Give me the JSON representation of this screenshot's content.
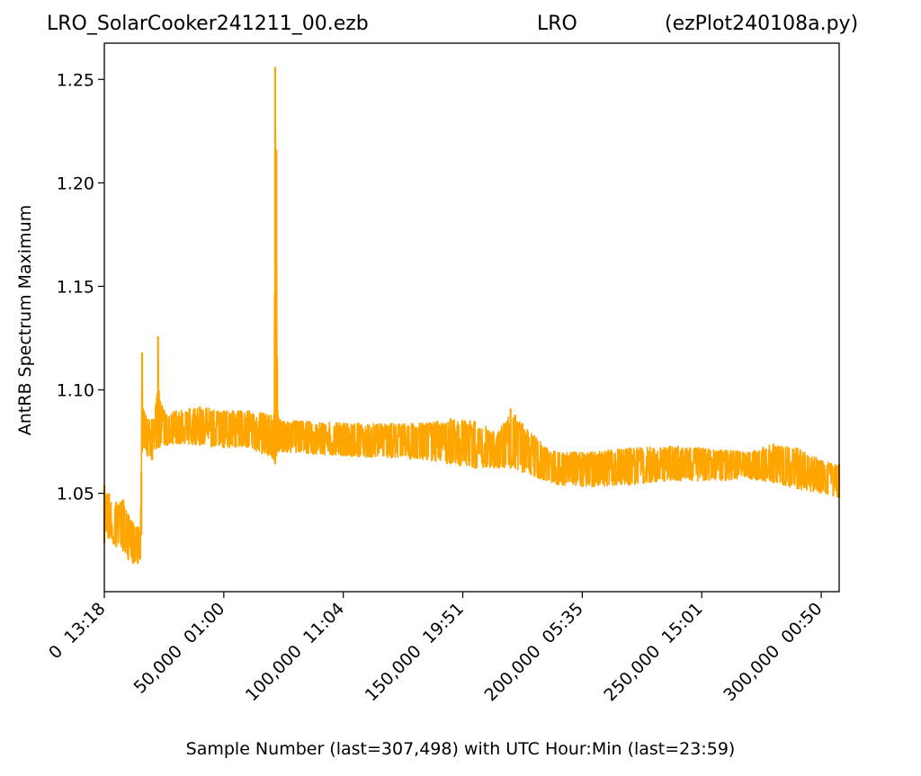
{
  "header": {
    "left": "LRO_SolarCooker241211_00.ezb",
    "center": "LRO",
    "right": "(ezPlot240108a.py)"
  },
  "chart_data": {
    "type": "line",
    "xlabel": "Sample Number (last=307,498) with UTC Hour:Min (last=23:59)",
    "ylabel": "AntRB Spectrum Maximum",
    "xlim": [
      0,
      307498
    ],
    "ylim": [
      1.0025,
      1.2675
    ],
    "xticks": [
      {
        "value": 0,
        "label": "0  13:18"
      },
      {
        "value": 50000,
        "label": "50,000  01:00"
      },
      {
        "value": 100000,
        "label": "100,000  11:04"
      },
      {
        "value": 150000,
        "label": "150,000  19:51"
      },
      {
        "value": 200000,
        "label": "200,000  05:35"
      },
      {
        "value": 250000,
        "label": "250,000  15:01"
      },
      {
        "value": 300000,
        "label": "300,000  00:50"
      }
    ],
    "yticks": [
      {
        "value": 1.05,
        "label": "1.05"
      },
      {
        "value": 1.1,
        "label": "1.10"
      },
      {
        "value": 1.15,
        "label": "1.15"
      },
      {
        "value": 1.2,
        "label": "1.20"
      },
      {
        "value": 1.25,
        "label": "1.25"
      }
    ],
    "grid": false,
    "series": [
      {
        "color": "#ffa500",
        "x": [
          0,
          2000,
          5000,
          8000,
          10000,
          12000,
          14000,
          15000,
          15500,
          15800,
          16500,
          18000,
          20000,
          22000,
          22500,
          23000,
          26000,
          30000,
          40000,
          50000,
          60000,
          66000,
          71000,
          71500,
          72000,
          72500,
          73000,
          75000,
          85000,
          100000,
          120000,
          135000,
          145000,
          155000,
          165000,
          170000,
          172000,
          175000,
          180000,
          185000,
          190000,
          200000,
          220000,
          240000,
          260000,
          270000,
          280000,
          290000,
          300000,
          307498
        ],
        "min": [
          1.026,
          1.028,
          1.024,
          1.022,
          1.018,
          1.016,
          1.016,
          1.018,
          1.03,
          1.07,
          1.072,
          1.068,
          1.066,
          1.072,
          1.072,
          1.072,
          1.073,
          1.074,
          1.073,
          1.072,
          1.072,
          1.069,
          1.066,
          1.064,
          1.068,
          1.07,
          1.07,
          1.07,
          1.069,
          1.068,
          1.067,
          1.066,
          1.064,
          1.062,
          1.062,
          1.062,
          1.062,
          1.06,
          1.058,
          1.056,
          1.054,
          1.053,
          1.054,
          1.056,
          1.056,
          1.057,
          1.055,
          1.052,
          1.05,
          1.048
        ],
        "max": [
          1.054,
          1.05,
          1.046,
          1.047,
          1.04,
          1.036,
          1.034,
          1.032,
          1.06,
          1.118,
          1.09,
          1.086,
          1.086,
          1.096,
          1.126,
          1.096,
          1.088,
          1.09,
          1.092,
          1.09,
          1.09,
          1.089,
          1.088,
          1.256,
          1.216,
          1.09,
          1.086,
          1.085,
          1.085,
          1.084,
          1.084,
          1.084,
          1.086,
          1.085,
          1.08,
          1.091,
          1.088,
          1.084,
          1.078,
          1.072,
          1.07,
          1.07,
          1.072,
          1.073,
          1.071,
          1.07,
          1.074,
          1.072,
          1.066,
          1.064
        ]
      }
    ]
  }
}
